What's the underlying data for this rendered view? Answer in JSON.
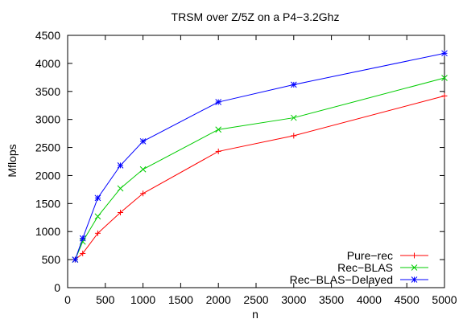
{
  "chart_data": {
    "type": "line",
    "title": "TRSM over Z/5Z on a P4−3.2Ghz",
    "xlabel": "n",
    "ylabel": "Mflops",
    "xlim": [
      0,
      5000
    ],
    "ylim": [
      0,
      4500
    ],
    "x_ticks": [
      "0",
      "500",
      "1000",
      "1500",
      "2000",
      "2500",
      "3000",
      "3500",
      "4000",
      "4500",
      "5000"
    ],
    "y_ticks": [
      "0",
      "500",
      "1000",
      "1500",
      "2000",
      "2500",
      "3000",
      "3500",
      "4000",
      "4500"
    ],
    "grid": false,
    "legend_position": "bottom-right",
    "x": [
      100,
      200,
      400,
      700,
      1000,
      2000,
      3000,
      5000
    ],
    "series": [
      {
        "name": "Pure−rec",
        "color": "#ff0000",
        "marker": "plus",
        "values": [
          500,
          610,
          970,
          1340,
          1680,
          2430,
          2710,
          3420
        ]
      },
      {
        "name": "Rec−BLAS",
        "color": "#00cc00",
        "marker": "cross",
        "values": [
          500,
          820,
          1270,
          1770,
          2110,
          2820,
          3030,
          3740
        ]
      },
      {
        "name": "Rec−BLAS−Delayed",
        "color": "#0000ff",
        "marker": "star",
        "values": [
          500,
          880,
          1600,
          2180,
          2610,
          3310,
          3620,
          4180
        ]
      }
    ]
  }
}
